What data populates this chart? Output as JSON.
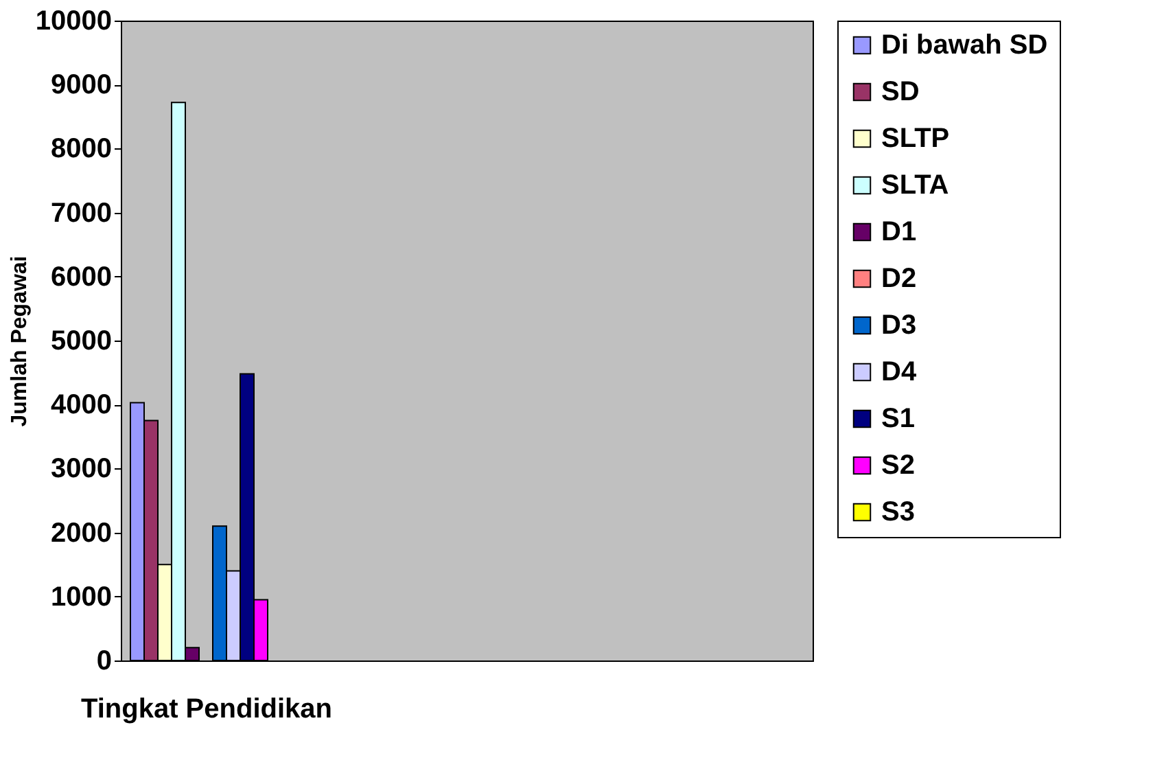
{
  "chart_data": {
    "type": "bar",
    "xlabel": "Tingkat Pendidikan",
    "ylabel": "Jumlah Pegawai",
    "categories": [
      null
    ],
    "series": [
      {
        "name": "Di bawah SD",
        "color": "#9999ff",
        "values": [
          4030
        ]
      },
      {
        "name": "SD",
        "color": "#993366",
        "values": [
          3750
        ]
      },
      {
        "name": "SLTP",
        "color": "#ffffcc",
        "values": [
          1500
        ]
      },
      {
        "name": "SLTA",
        "color": "#ccffff",
        "values": [
          8720
        ]
      },
      {
        "name": "D1",
        "color": "#660066",
        "values": [
          200
        ]
      },
      {
        "name": "D2",
        "color": "#ff8080",
        "values": [
          0
        ]
      },
      {
        "name": "D3",
        "color": "#0066cc",
        "values": [
          2100
        ]
      },
      {
        "name": "D4",
        "color": "#ccccff",
        "values": [
          1400
        ]
      },
      {
        "name": "S1",
        "color": "#000080",
        "values": [
          4480
        ]
      },
      {
        "name": "S2",
        "color": "#ff00ff",
        "values": [
          950
        ]
      },
      {
        "name": "S3",
        "color": "#ffff00",
        "values": [
          0
        ]
      }
    ],
    "ylim": [
      0,
      10000
    ],
    "yticks": [
      0,
      1000,
      2000,
      3000,
      4000,
      5000,
      6000,
      7000,
      8000,
      9000,
      10000
    ],
    "grid": false,
    "legend": "right",
    "tick_labels": "y"
  }
}
